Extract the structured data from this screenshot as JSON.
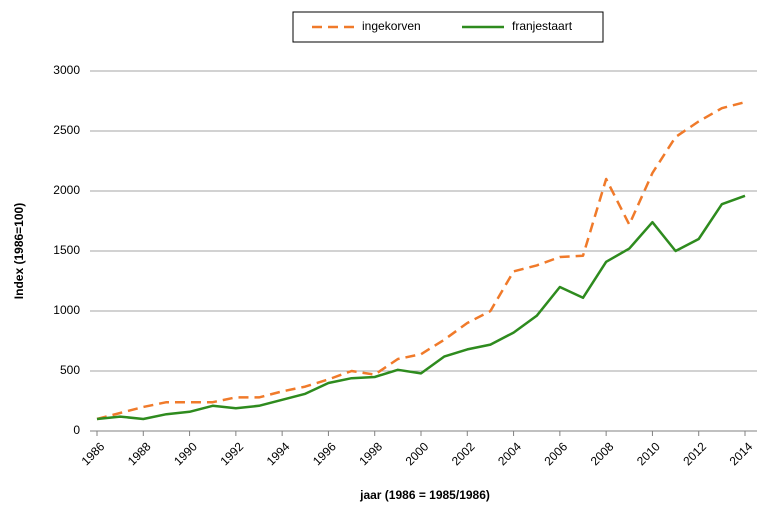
{
  "chart_data": {
    "type": "line",
    "x_label": "jaar (1986 = 1985/1986)",
    "y_label": "Index (1986=100)",
    "x": [
      1986,
      1987,
      1988,
      1989,
      1990,
      1991,
      1992,
      1993,
      1994,
      1995,
      1996,
      1997,
      1998,
      1999,
      2000,
      2001,
      2002,
      2003,
      2004,
      2005,
      2006,
      2007,
      2008,
      2009,
      2010,
      2011,
      2012,
      2013,
      2014
    ],
    "xlim": [
      1986,
      2014
    ],
    "xticks": [
      1986,
      1988,
      1990,
      1992,
      1994,
      1996,
      1998,
      2000,
      2002,
      2004,
      2006,
      2008,
      2010,
      2012,
      2014
    ],
    "ylim": [
      0,
      3000
    ],
    "yticks": [
      0,
      500,
      1000,
      1500,
      2000,
      2500,
      3000
    ],
    "grid": true,
    "legend": "top",
    "series": [
      {
        "name": "ingekorven",
        "color": "#f07a2a",
        "dashed": true,
        "values": [
          100,
          150,
          200,
          240,
          240,
          240,
          280,
          280,
          330,
          370,
          430,
          500,
          470,
          600,
          640,
          760,
          900,
          1000,
          1330,
          1380,
          1450,
          1460,
          2100,
          1720,
          2150,
          2450,
          2580,
          2690,
          2740
        ]
      },
      {
        "name": "franjestaart",
        "color": "#2e8b1e",
        "dashed": false,
        "values": [
          100,
          120,
          100,
          140,
          160,
          210,
          190,
          210,
          260,
          310,
          400,
          440,
          450,
          510,
          480,
          620,
          680,
          720,
          820,
          960,
          1200,
          1110,
          1410,
          1520,
          1740,
          1500,
          1600,
          1890,
          1960
        ]
      }
    ]
  }
}
